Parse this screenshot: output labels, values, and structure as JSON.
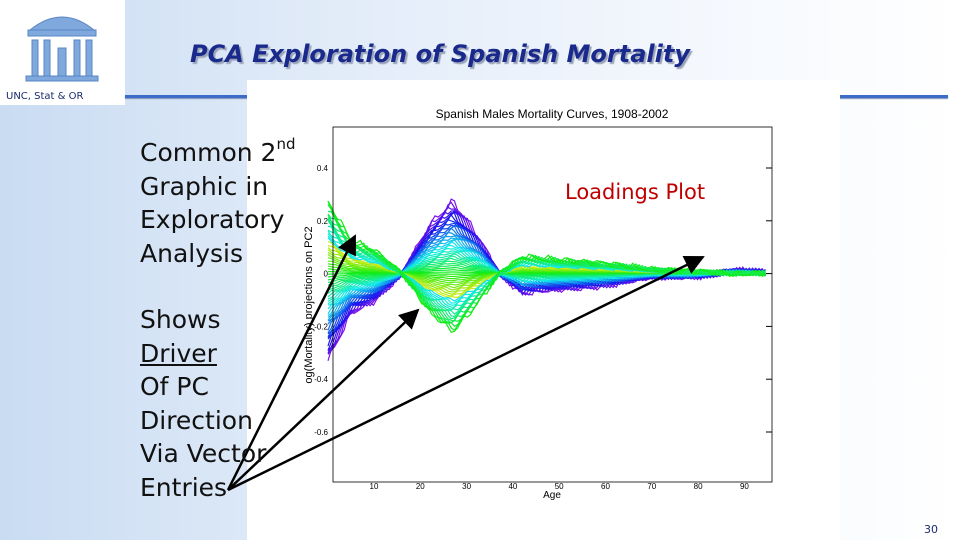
{
  "header": {
    "title": "PCA Exploration of Spanish Mortality",
    "logo_caption": "UNC, Stat & OR"
  },
  "body": {
    "block1": {
      "line1": "Common 2",
      "line1_sup": "nd",
      "lines": [
        "Graphic in",
        "Exploratory",
        "Analysis"
      ]
    },
    "block2": {
      "lines": [
        "Shows",
        "Driver",
        "Of PC",
        "Direction",
        "Via Vector",
        "Entries"
      ]
    }
  },
  "plot": {
    "title": "Spanish Males Mortality Curves, 1908-2002",
    "xlabel": "Age",
    "ylabel": "og(Mortality) projections on PC2",
    "xticks": [
      "10",
      "20",
      "30",
      "40",
      "50",
      "60",
      "70",
      "80",
      "90"
    ],
    "yticks": [
      "0.4",
      "0.2",
      "0",
      "-0.2",
      "-0.4",
      "-0.6"
    ]
  },
  "annotation": "Loadings Plot",
  "page_number": "30"
}
